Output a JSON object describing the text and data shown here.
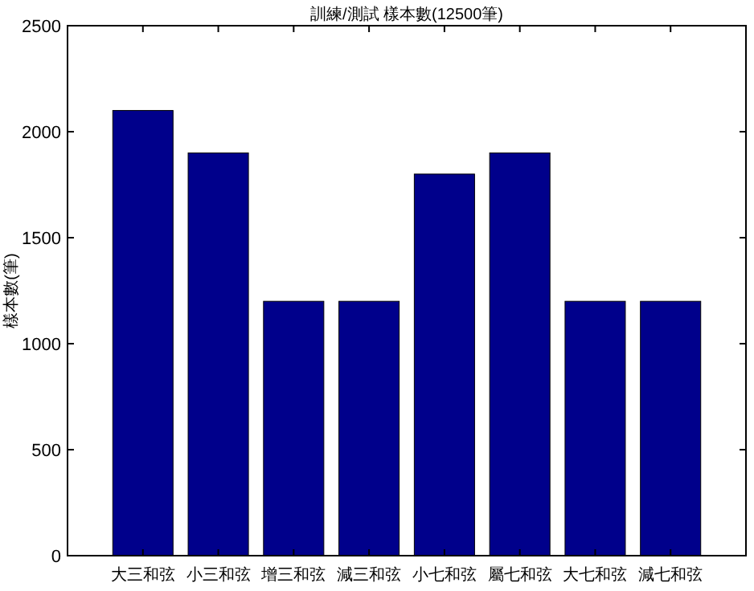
{
  "chart_data": {
    "type": "bar",
    "title": "訓練/測試 樣本數(12500筆)",
    "ylabel": "樣本數(筆)",
    "categories": [
      "大三和弦",
      "小三和弦",
      "增三和弦",
      "減三和弦",
      "小七和弦",
      "屬七和弦",
      "大七和弦",
      "減七和弦"
    ],
    "values": [
      2100,
      1900,
      1200,
      1200,
      1800,
      1900,
      1200,
      1200
    ],
    "color": "#00008b",
    "ylim": [
      0,
      2500
    ],
    "yticks": [
      0,
      500,
      1000,
      1500,
      2000,
      2500
    ],
    "grid": false
  }
}
